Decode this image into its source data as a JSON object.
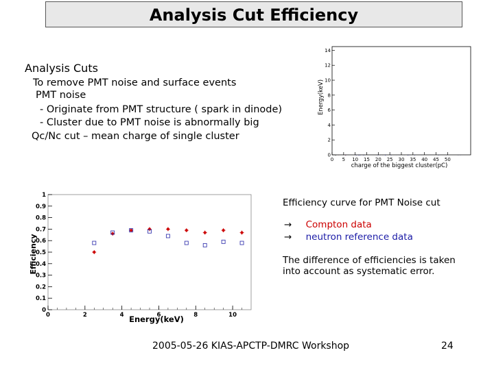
{
  "slide": {
    "title": "Analysis Cut Efficiency",
    "heading": "Analysis Cuts",
    "lines": [
      "To remove PMT noise and surface events",
      "PMT noise",
      "- Originate from PMT structure ( spark in dinode)",
      "- Cluster due to PMT noise is abnormally big",
      "Qc/Nc cut – mean charge of single cluster"
    ],
    "right_caption": "Efficiency curve for PMT Noise cut",
    "legend": [
      {
        "arrow": "→",
        "label": "Compton data",
        "color": "#cc0000"
      },
      {
        "arrow": "→",
        "label": "neutron reference data",
        "color": "#1a1aa6"
      }
    ],
    "note": [
      "The difference of efficiencies is taken",
      "into account as systematic error."
    ],
    "footer": "2005-05-26 KIAS-APCTP-DMRC Workshop",
    "page_number": "24"
  },
  "chart_data": [
    {
      "type": "scatter",
      "xlabel": "charge of the biggest cluster(pC)",
      "ylabel": "Energy(keV)",
      "xlim": [
        0,
        60
      ],
      "ylim": [
        0,
        14.5
      ],
      "xticks": [
        "0",
        "5",
        "10",
        "15",
        "20",
        "25",
        "30",
        "35",
        "40",
        "45",
        "50"
      ],
      "yticks": [
        "0",
        "2",
        "4",
        "6",
        "8",
        "10",
        "12",
        "14"
      ],
      "series": [
        {
          "color": "#222222"
        },
        {
          "color": "#cc0000"
        },
        {
          "color": "#2a2ad0"
        }
      ]
    },
    {
      "type": "scatter",
      "xlabel": "Energy(keV)",
      "ylabel": "Efficiency",
      "xlim": [
        0,
        11
      ],
      "ylim": [
        0,
        1
      ],
      "xticks": [
        "0",
        "2",
        "4",
        "6",
        "8",
        "10"
      ],
      "yticks": [
        "0",
        "0.1",
        "0.2",
        "0.3",
        "0.4",
        "0.5",
        "0.6",
        "0.7",
        "0.8",
        "0.9",
        "1"
      ],
      "grid": false,
      "series": [
        {
          "name": "Compton data",
          "color": "#cc0000",
          "marker": "star",
          "x": [
            2.5,
            3.5,
            4.5,
            5.5,
            6.5,
            7.5,
            8.5,
            9.5,
            10.5
          ],
          "y": [
            0.5,
            0.66,
            0.69,
            0.7,
            0.7,
            0.69,
            0.67,
            0.69,
            0.67
          ]
        },
        {
          "name": "neutron reference data",
          "color": "#3a3ab0",
          "marker": "square",
          "x": [
            2.5,
            3.5,
            4.5,
            5.5,
            6.5,
            7.5,
            8.5,
            9.5,
            10.5
          ],
          "y": [
            0.58,
            0.67,
            0.69,
            0.68,
            0.64,
            0.58,
            0.56,
            0.59,
            0.58
          ]
        }
      ]
    }
  ]
}
